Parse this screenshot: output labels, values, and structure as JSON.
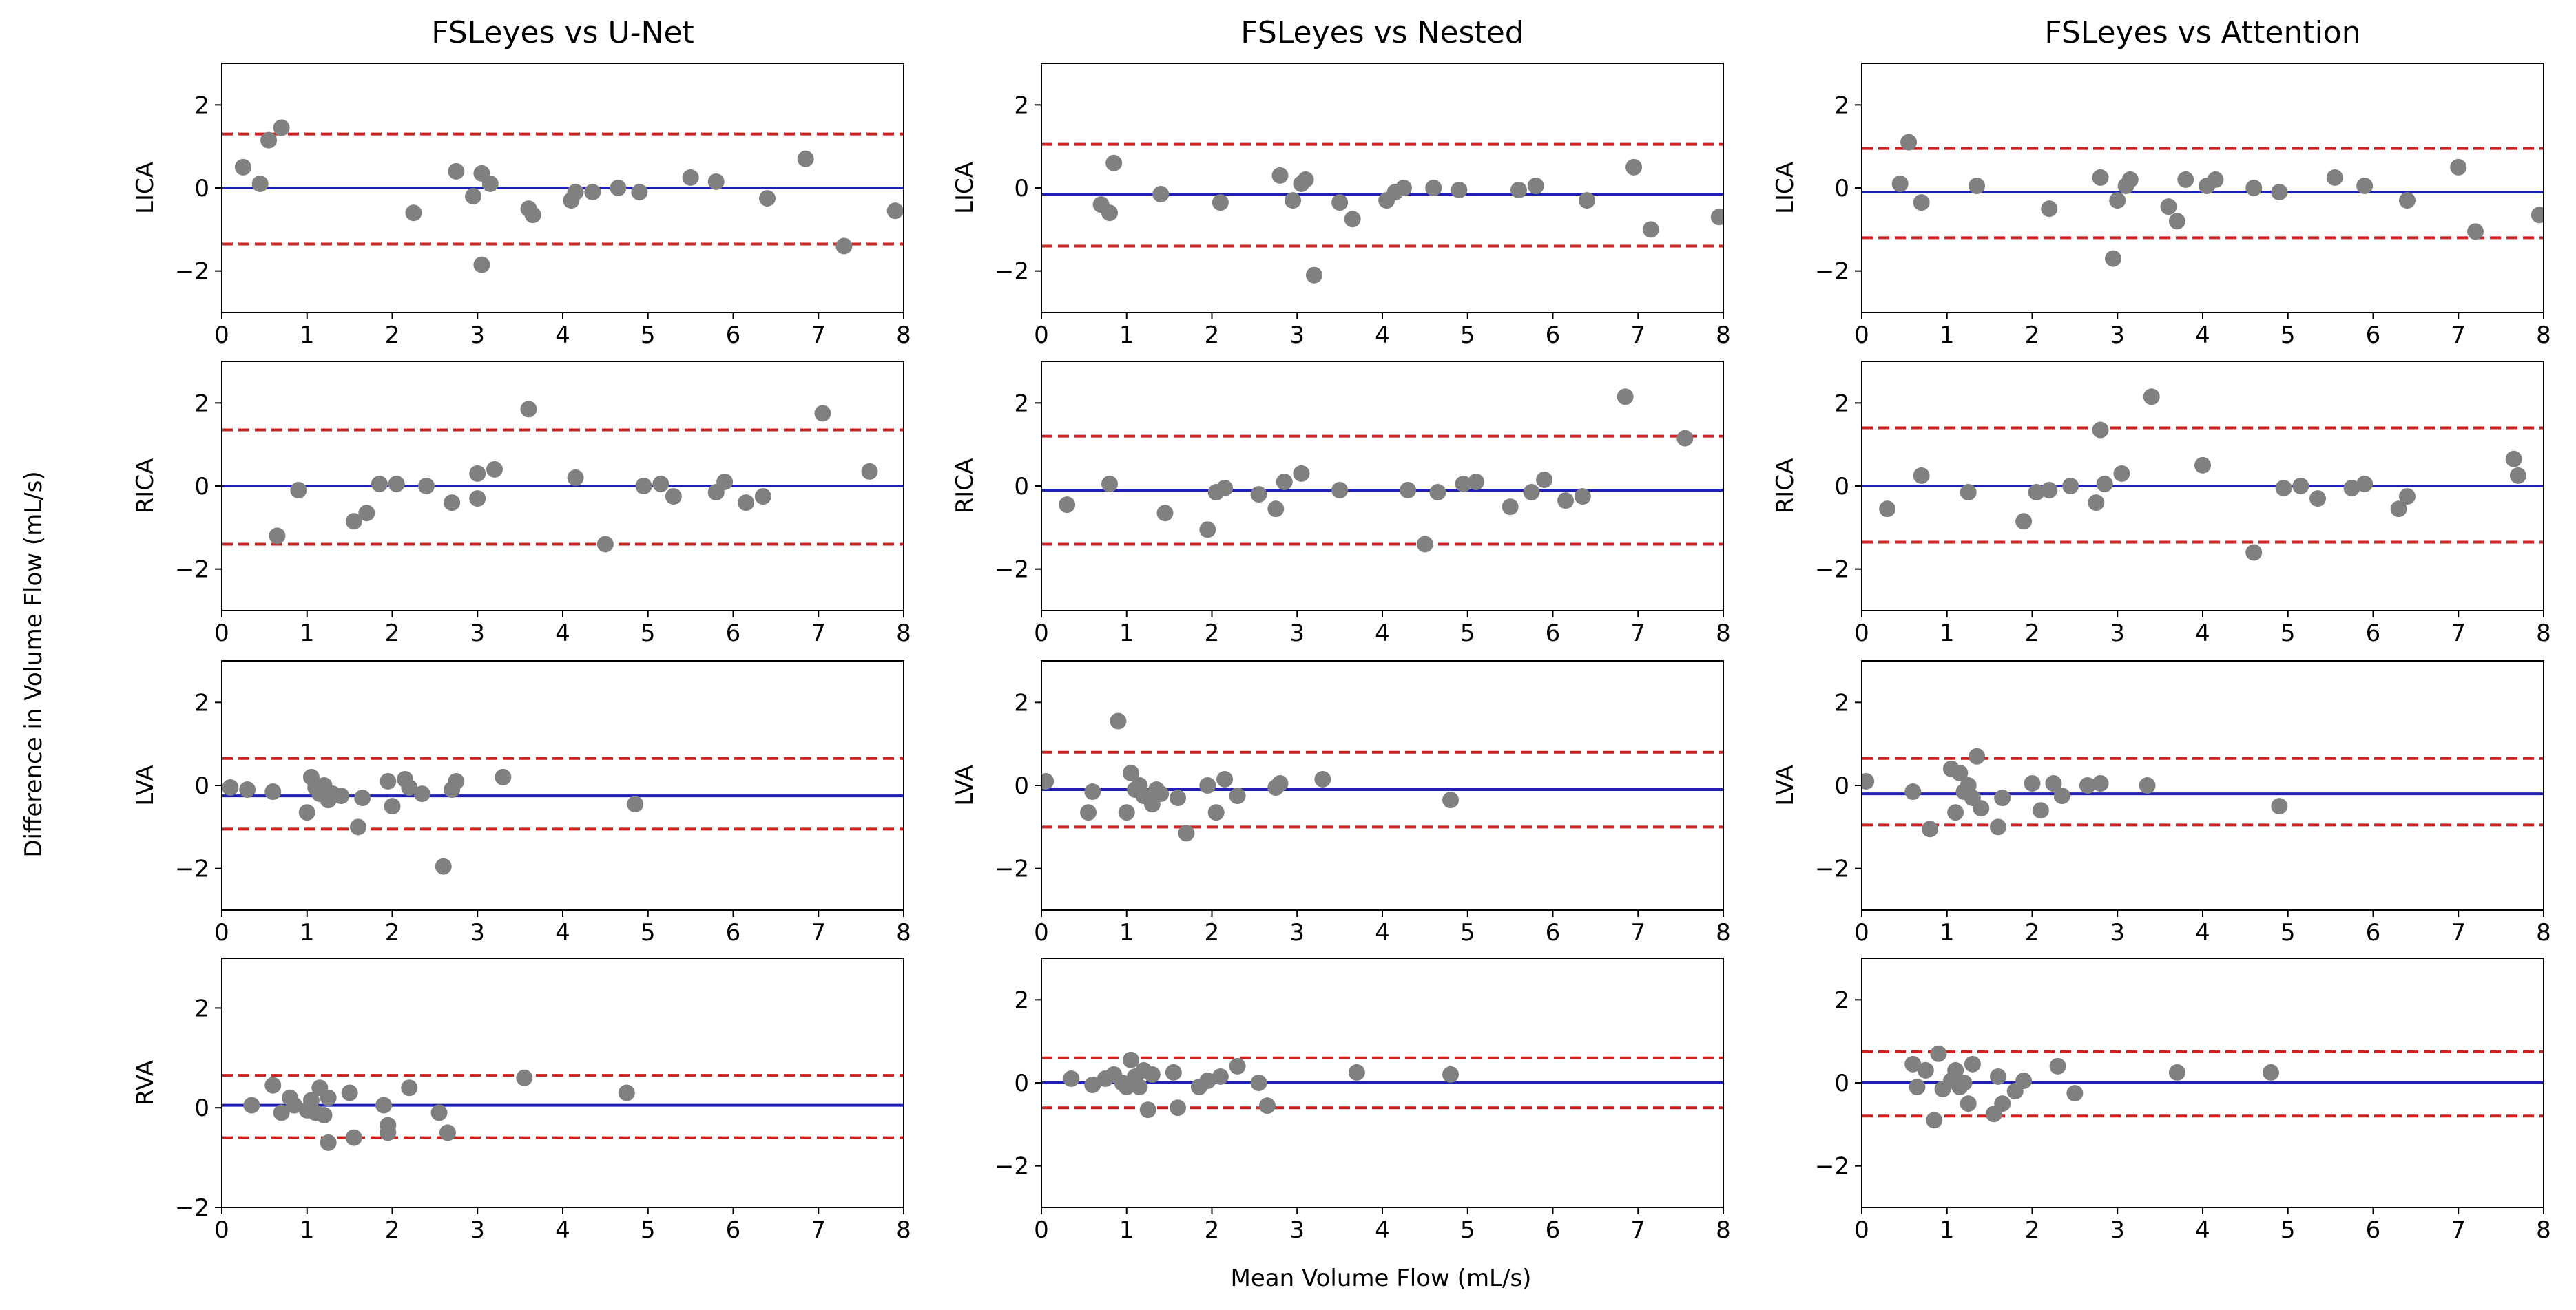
{
  "figure": {
    "ylabel": "Difference in Volume Flow (mL/s)",
    "xlabel": "Mean Volume Flow (mL/s)"
  },
  "colors": {
    "mean_line": "#1f1fb4",
    "limit_line": "#cc2222",
    "points": "#808080",
    "axes": "#000000"
  },
  "chart_data": [
    {
      "type": "scatter",
      "title": "FSLeyes vs U-Net",
      "ylabel": "LICA",
      "xlim": [
        0,
        8
      ],
      "ylim": [
        -3,
        3
      ],
      "xticks": [
        0,
        1,
        2,
        3,
        4,
        5,
        6,
        7,
        8
      ],
      "yticks": [
        -2,
        0,
        2
      ],
      "mean": 0.0,
      "upper_loa": 1.3,
      "lower_loa": -1.35,
      "points": [
        [
          0.25,
          0.5
        ],
        [
          0.45,
          0.1
        ],
        [
          0.55,
          1.15
        ],
        [
          0.7,
          1.45
        ],
        [
          2.25,
          -0.6
        ],
        [
          2.75,
          0.4
        ],
        [
          2.95,
          -0.2
        ],
        [
          3.05,
          0.35
        ],
        [
          3.15,
          0.1
        ],
        [
          3.05,
          -1.85
        ],
        [
          3.6,
          -0.5
        ],
        [
          3.65,
          -0.65
        ],
        [
          4.1,
          -0.3
        ],
        [
          4.15,
          -0.1
        ],
        [
          4.35,
          -0.1
        ],
        [
          4.65,
          0.0
        ],
        [
          4.9,
          -0.1
        ],
        [
          5.5,
          0.25
        ],
        [
          5.8,
          0.15
        ],
        [
          6.4,
          -0.25
        ],
        [
          6.85,
          0.7
        ],
        [
          7.3,
          -1.4
        ],
        [
          7.9,
          -0.55
        ]
      ]
    },
    {
      "type": "scatter",
      "title": "FSLeyes vs Nested",
      "ylabel": "LICA",
      "xlim": [
        0,
        8
      ],
      "ylim": [
        -3,
        3
      ],
      "xticks": [
        0,
        1,
        2,
        3,
        4,
        5,
        6,
        7,
        8
      ],
      "yticks": [
        -2,
        0,
        2
      ],
      "mean": -0.15,
      "upper_loa": 1.05,
      "lower_loa": -1.4,
      "points": [
        [
          0.7,
          -0.4
        ],
        [
          0.8,
          -0.6
        ],
        [
          0.85,
          0.6
        ],
        [
          1.4,
          -0.15
        ],
        [
          2.1,
          -0.35
        ],
        [
          2.8,
          0.3
        ],
        [
          2.95,
          -0.3
        ],
        [
          3.05,
          0.1
        ],
        [
          3.1,
          0.2
        ],
        [
          3.2,
          -2.1
        ],
        [
          3.5,
          -0.35
        ],
        [
          3.65,
          -0.75
        ],
        [
          4.05,
          -0.3
        ],
        [
          4.15,
          -0.1
        ],
        [
          4.25,
          0.0
        ],
        [
          4.6,
          0.0
        ],
        [
          4.9,
          -0.05
        ],
        [
          5.6,
          -0.05
        ],
        [
          5.8,
          0.05
        ],
        [
          6.4,
          -0.3
        ],
        [
          6.95,
          0.5
        ],
        [
          7.15,
          -1.0
        ],
        [
          7.95,
          -0.7
        ]
      ]
    },
    {
      "type": "scatter",
      "title": "FSLeyes vs Attention",
      "ylabel": "LICA",
      "xlim": [
        0,
        8
      ],
      "ylim": [
        -3,
        3
      ],
      "xticks": [
        0,
        1,
        2,
        3,
        4,
        5,
        6,
        7,
        8
      ],
      "yticks": [
        -2,
        0,
        2
      ],
      "mean": -0.1,
      "upper_loa": 0.95,
      "lower_loa": -1.2,
      "points": [
        [
          0.45,
          0.1
        ],
        [
          0.55,
          1.1
        ],
        [
          0.7,
          -0.35
        ],
        [
          1.35,
          0.05
        ],
        [
          2.2,
          -0.5
        ],
        [
          2.8,
          0.25
        ],
        [
          2.95,
          -1.7
        ],
        [
          3.0,
          -0.3
        ],
        [
          3.1,
          0.05
        ],
        [
          3.15,
          0.2
        ],
        [
          3.6,
          -0.45
        ],
        [
          3.7,
          -0.8
        ],
        [
          3.8,
          0.2
        ],
        [
          4.05,
          0.05
        ],
        [
          4.15,
          0.2
        ],
        [
          4.6,
          0.0
        ],
        [
          4.9,
          -0.1
        ],
        [
          5.55,
          0.25
        ],
        [
          5.9,
          0.05
        ],
        [
          6.4,
          -0.3
        ],
        [
          7.0,
          0.5
        ],
        [
          7.2,
          -1.05
        ],
        [
          7.95,
          -0.65
        ]
      ]
    },
    {
      "type": "scatter",
      "title": "",
      "ylabel": "RICA",
      "xlim": [
        0,
        8
      ],
      "ylim": [
        -3,
        3
      ],
      "xticks": [
        0,
        1,
        2,
        3,
        4,
        5,
        6,
        7,
        8
      ],
      "yticks": [
        -2,
        0,
        2
      ],
      "mean": 0.0,
      "upper_loa": 1.35,
      "lower_loa": -1.4,
      "points": [
        [
          0.65,
          -1.2
        ],
        [
          0.9,
          -0.1
        ],
        [
          1.55,
          -0.85
        ],
        [
          1.7,
          -0.65
        ],
        [
          1.85,
          0.05
        ],
        [
          2.05,
          0.05
        ],
        [
          2.4,
          0.0
        ],
        [
          2.7,
          -0.4
        ],
        [
          3.0,
          -0.3
        ],
        [
          3.0,
          0.3
        ],
        [
          3.2,
          0.4
        ],
        [
          3.6,
          1.85
        ],
        [
          4.15,
          0.2
        ],
        [
          4.5,
          -1.4
        ],
        [
          4.95,
          0.0
        ],
        [
          5.15,
          0.05
        ],
        [
          5.3,
          -0.25
        ],
        [
          5.8,
          -0.15
        ],
        [
          5.9,
          0.1
        ],
        [
          6.15,
          -0.4
        ],
        [
          6.35,
          -0.25
        ],
        [
          7.05,
          1.75
        ],
        [
          7.6,
          0.35
        ]
      ]
    },
    {
      "type": "scatter",
      "title": "",
      "ylabel": "RICA",
      "xlim": [
        0,
        8
      ],
      "ylim": [
        -3,
        3
      ],
      "xticks": [
        0,
        1,
        2,
        3,
        4,
        5,
        6,
        7,
        8
      ],
      "yticks": [
        -2,
        0,
        2
      ],
      "mean": -0.1,
      "upper_loa": 1.2,
      "lower_loa": -1.4,
      "points": [
        [
          0.3,
          -0.45
        ],
        [
          0.8,
          0.05
        ],
        [
          1.45,
          -0.65
        ],
        [
          1.95,
          -1.05
        ],
        [
          2.05,
          -0.15
        ],
        [
          2.15,
          -0.05
        ],
        [
          2.55,
          -0.2
        ],
        [
          2.75,
          -0.55
        ],
        [
          2.85,
          0.1
        ],
        [
          3.05,
          0.3
        ],
        [
          3.5,
          -0.1
        ],
        [
          4.3,
          -0.1
        ],
        [
          4.5,
          -1.4
        ],
        [
          4.65,
          -0.15
        ],
        [
          4.95,
          0.05
        ],
        [
          5.1,
          0.1
        ],
        [
          5.5,
          -0.5
        ],
        [
          5.75,
          -0.15
        ],
        [
          5.9,
          0.15
        ],
        [
          6.15,
          -0.35
        ],
        [
          6.35,
          -0.25
        ],
        [
          6.85,
          2.15
        ],
        [
          7.55,
          1.15
        ]
      ]
    },
    {
      "type": "scatter",
      "title": "",
      "ylabel": "RICA",
      "xlim": [
        0,
        8
      ],
      "ylim": [
        -3,
        3
      ],
      "xticks": [
        0,
        1,
        2,
        3,
        4,
        5,
        6,
        7,
        8
      ],
      "yticks": [
        -2,
        0,
        2
      ],
      "mean": 0.0,
      "upper_loa": 1.4,
      "lower_loa": -1.35,
      "points": [
        [
          0.3,
          -0.55
        ],
        [
          0.7,
          0.25
        ],
        [
          1.25,
          -0.15
        ],
        [
          1.9,
          -0.85
        ],
        [
          2.05,
          -0.15
        ],
        [
          2.2,
          -0.1
        ],
        [
          2.45,
          0.0
        ],
        [
          2.75,
          -0.4
        ],
        [
          2.8,
          1.35
        ],
        [
          2.85,
          0.05
        ],
        [
          3.05,
          0.3
        ],
        [
          3.4,
          2.15
        ],
        [
          4.0,
          0.5
        ],
        [
          4.6,
          -1.6
        ],
        [
          4.95,
          -0.05
        ],
        [
          5.15,
          0.0
        ],
        [
          5.35,
          -0.3
        ],
        [
          5.75,
          -0.05
        ],
        [
          5.9,
          0.05
        ],
        [
          6.3,
          -0.55
        ],
        [
          6.4,
          -0.25
        ],
        [
          7.65,
          0.65
        ],
        [
          7.7,
          0.25
        ]
      ]
    },
    {
      "type": "scatter",
      "title": "",
      "ylabel": "LVA",
      "xlim": [
        0,
        8
      ],
      "ylim": [
        -3,
        3
      ],
      "xticks": [
        0,
        1,
        2,
        3,
        4,
        5,
        6,
        7,
        8
      ],
      "yticks": [
        -2,
        0,
        2
      ],
      "mean": -0.25,
      "upper_loa": 0.65,
      "lower_loa": -1.05,
      "points": [
        [
          0.1,
          -0.05
        ],
        [
          0.3,
          -0.1
        ],
        [
          0.6,
          -0.15
        ],
        [
          1.0,
          -0.65
        ],
        [
          1.05,
          0.2
        ],
        [
          1.1,
          -0.05
        ],
        [
          1.15,
          -0.2
        ],
        [
          1.2,
          0.0
        ],
        [
          1.25,
          -0.35
        ],
        [
          1.3,
          -0.2
        ],
        [
          1.4,
          -0.25
        ],
        [
          1.6,
          -1.0
        ],
        [
          1.65,
          -0.3
        ],
        [
          1.95,
          0.1
        ],
        [
          2.0,
          -0.5
        ],
        [
          2.15,
          0.15
        ],
        [
          2.2,
          -0.05
        ],
        [
          2.35,
          -0.2
        ],
        [
          2.6,
          -1.95
        ],
        [
          2.7,
          -0.1
        ],
        [
          2.75,
          0.1
        ],
        [
          3.3,
          0.2
        ],
        [
          4.85,
          -0.45
        ]
      ]
    },
    {
      "type": "scatter",
      "title": "",
      "ylabel": "LVA",
      "xlim": [
        0,
        8
      ],
      "ylim": [
        -3,
        3
      ],
      "xticks": [
        0,
        1,
        2,
        3,
        4,
        5,
        6,
        7,
        8
      ],
      "yticks": [
        -2,
        0,
        2
      ],
      "mean": -0.1,
      "upper_loa": 0.8,
      "lower_loa": -1.0,
      "points": [
        [
          0.05,
          0.1
        ],
        [
          0.55,
          -0.65
        ],
        [
          0.6,
          -0.15
        ],
        [
          0.9,
          1.55
        ],
        [
          1.0,
          -0.65
        ],
        [
          1.05,
          0.3
        ],
        [
          1.1,
          -0.1
        ],
        [
          1.15,
          0.0
        ],
        [
          1.2,
          -0.25
        ],
        [
          1.3,
          -0.45
        ],
        [
          1.35,
          -0.1
        ],
        [
          1.4,
          -0.2
        ],
        [
          1.6,
          -0.3
        ],
        [
          1.7,
          -1.15
        ],
        [
          1.95,
          0.0
        ],
        [
          2.05,
          -0.65
        ],
        [
          2.15,
          0.15
        ],
        [
          2.3,
          -0.25
        ],
        [
          2.75,
          -0.05
        ],
        [
          2.8,
          0.05
        ],
        [
          3.3,
          0.15
        ],
        [
          4.8,
          -0.35
        ]
      ]
    },
    {
      "type": "scatter",
      "title": "",
      "ylabel": "LVA",
      "xlim": [
        0,
        8
      ],
      "ylim": [
        -3,
        3
      ],
      "xticks": [
        0,
        1,
        2,
        3,
        4,
        5,
        6,
        7,
        8
      ],
      "yticks": [
        -2,
        0,
        2
      ],
      "mean": -0.2,
      "upper_loa": 0.65,
      "lower_loa": -0.95,
      "points": [
        [
          0.05,
          0.1
        ],
        [
          0.6,
          -0.15
        ],
        [
          0.8,
          -1.05
        ],
        [
          1.05,
          0.4
        ],
        [
          1.1,
          -0.65
        ],
        [
          1.15,
          0.3
        ],
        [
          1.2,
          -0.15
        ],
        [
          1.25,
          0.0
        ],
        [
          1.3,
          -0.3
        ],
        [
          1.35,
          0.7
        ],
        [
          1.4,
          -0.55
        ],
        [
          1.6,
          -1.0
        ],
        [
          1.65,
          -0.3
        ],
        [
          2.0,
          0.05
        ],
        [
          2.1,
          -0.6
        ],
        [
          2.25,
          0.05
        ],
        [
          2.35,
          -0.25
        ],
        [
          2.65,
          0.0
        ],
        [
          2.8,
          0.05
        ],
        [
          3.35,
          0.0
        ],
        [
          4.9,
          -0.5
        ]
      ]
    },
    {
      "type": "scatter",
      "title": "",
      "ylabel": "RVA",
      "xlim": [
        0,
        8
      ],
      "ylim": [
        -2,
        3
      ],
      "xticks": [
        0,
        1,
        2,
        3,
        4,
        5,
        6,
        7,
        8
      ],
      "yticks": [
        -2,
        0,
        2
      ],
      "mean": 0.05,
      "upper_loa": 0.65,
      "lower_loa": -0.6,
      "points": [
        [
          0.35,
          0.05
        ],
        [
          0.6,
          0.45
        ],
        [
          0.7,
          -0.1
        ],
        [
          0.8,
          0.2
        ],
        [
          0.85,
          0.05
        ],
        [
          1.0,
          -0.05
        ],
        [
          1.05,
          0.15
        ],
        [
          1.1,
          -0.1
        ],
        [
          1.15,
          0.4
        ],
        [
          1.2,
          -0.15
        ],
        [
          1.25,
          -0.7
        ],
        [
          1.25,
          0.2
        ],
        [
          1.5,
          0.3
        ],
        [
          1.55,
          -0.6
        ],
        [
          1.9,
          0.05
        ],
        [
          1.95,
          -0.35
        ],
        [
          1.95,
          -0.5
        ],
        [
          2.2,
          0.4
        ],
        [
          2.55,
          -0.1
        ],
        [
          2.65,
          -0.5
        ],
        [
          3.55,
          0.6
        ],
        [
          4.75,
          0.3
        ]
      ]
    },
    {
      "type": "scatter",
      "title": "",
      "ylabel": "",
      "xlim": [
        0,
        8
      ],
      "ylim": [
        -3,
        3
      ],
      "xticks": [
        0,
        1,
        2,
        3,
        4,
        5,
        6,
        7,
        8
      ],
      "yticks": [
        -2,
        0,
        2
      ],
      "mean": 0.0,
      "upper_loa": 0.6,
      "lower_loa": -0.6,
      "points": [
        [
          0.35,
          0.1
        ],
        [
          0.6,
          -0.05
        ],
        [
          0.75,
          0.1
        ],
        [
          0.85,
          0.2
        ],
        [
          0.95,
          0.0
        ],
        [
          1.0,
          -0.1
        ],
        [
          1.05,
          0.55
        ],
        [
          1.1,
          0.15
        ],
        [
          1.15,
          -0.1
        ],
        [
          1.2,
          0.3
        ],
        [
          1.25,
          -0.65
        ],
        [
          1.3,
          0.2
        ],
        [
          1.55,
          0.25
        ],
        [
          1.6,
          -0.6
        ],
        [
          1.85,
          -0.1
        ],
        [
          1.95,
          0.05
        ],
        [
          2.1,
          0.15
        ],
        [
          2.3,
          0.4
        ],
        [
          2.55,
          0.0
        ],
        [
          2.65,
          -0.55
        ],
        [
          3.7,
          0.25
        ],
        [
          4.8,
          0.2
        ]
      ]
    },
    {
      "type": "scatter",
      "title": "",
      "ylabel": "",
      "xlim": [
        0,
        8
      ],
      "ylim": [
        -3,
        3
      ],
      "xticks": [
        0,
        1,
        2,
        3,
        4,
        5,
        6,
        7,
        8
      ],
      "yticks": [
        -2,
        0,
        2
      ],
      "mean": 0.0,
      "upper_loa": 0.75,
      "lower_loa": -0.8,
      "points": [
        [
          0.6,
          0.45
        ],
        [
          0.65,
          -0.1
        ],
        [
          0.75,
          0.3
        ],
        [
          0.85,
          -0.9
        ],
        [
          0.9,
          0.7
        ],
        [
          0.95,
          -0.15
        ],
        [
          1.05,
          0.05
        ],
        [
          1.1,
          0.3
        ],
        [
          1.15,
          -0.1
        ],
        [
          1.2,
          0.0
        ],
        [
          1.25,
          -0.5
        ],
        [
          1.3,
          0.45
        ],
        [
          1.55,
          -0.75
        ],
        [
          1.6,
          0.15
        ],
        [
          1.65,
          -0.5
        ],
        [
          1.8,
          -0.2
        ],
        [
          1.9,
          0.05
        ],
        [
          2.3,
          0.4
        ],
        [
          2.5,
          -0.25
        ],
        [
          3.7,
          0.25
        ],
        [
          4.8,
          0.25
        ]
      ]
    }
  ]
}
